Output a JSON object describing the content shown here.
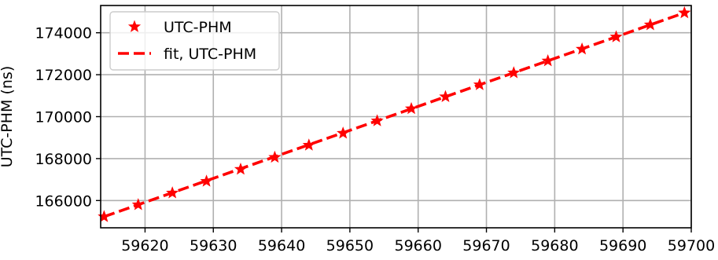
{
  "chart_data": {
    "type": "scatter",
    "xlim": [
      59613.5,
      59700
    ],
    "ylim": [
      164700,
      175300
    ],
    "x_ticks": [
      59620,
      59630,
      59640,
      59650,
      59660,
      59670,
      59680,
      59690,
      59700
    ],
    "x_tick_labels": [
      "59620",
      "59630",
      "59640",
      "59650",
      "59660",
      "59670",
      "59680",
      "59690",
      "59700"
    ],
    "y_ticks": [
      166000,
      168000,
      170000,
      172000,
      174000
    ],
    "y_tick_labels": [
      "166000",
      "168000",
      "170000",
      "172000",
      "174000"
    ],
    "ylabel": "UTC-PHM (ns)",
    "grid": true,
    "legend_position": "top-left",
    "series": [
      {
        "name": "UTC-PHM",
        "marker": "star",
        "color": "#ff0000",
        "x": [
          59614,
          59619,
          59624,
          59629,
          59634,
          59639,
          59644,
          59649,
          59654,
          59659,
          59664,
          59669,
          59674,
          59679,
          59684,
          59689,
          59694,
          59699
        ],
        "y": [
          165230,
          165800,
          166360,
          166920,
          167490,
          168060,
          168640,
          169210,
          169800,
          170380,
          170950,
          171520,
          172090,
          172660,
          173220,
          173800,
          174380,
          174950
        ]
      },
      {
        "name": "fit, UTC-PHM",
        "line_style": "dashed",
        "color": "#ff0000",
        "x": [
          59614,
          59699
        ],
        "y": [
          165230,
          174950
        ]
      }
    ]
  }
}
